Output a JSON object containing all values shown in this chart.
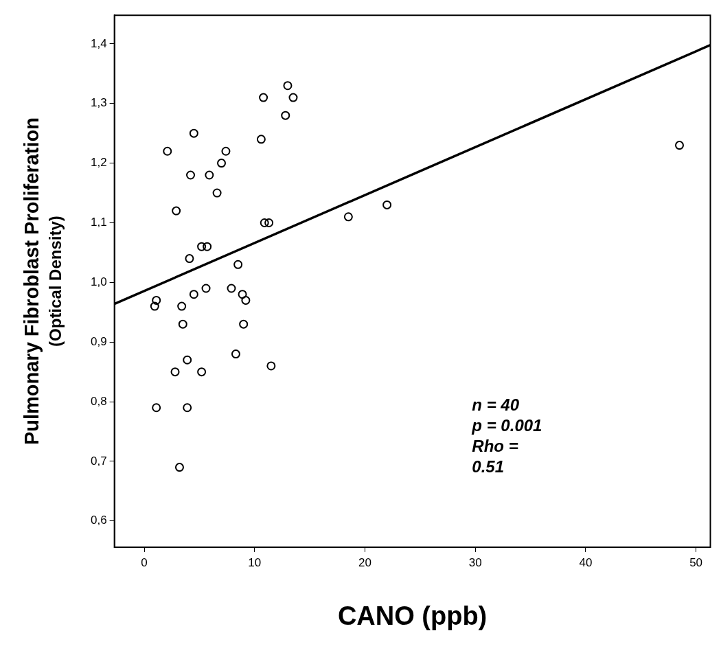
{
  "chart_data": {
    "type": "scatter",
    "xlabel": "CANO (ppb)",
    "ylabel": "Pulmonary Fibroblast Proliferation\n(Optical Density)",
    "xlim": [
      -2.7,
      51.3
    ],
    "ylim": [
      0.556,
      1.448
    ],
    "xticks": [
      0,
      10,
      20,
      30,
      40,
      50
    ],
    "yticks": [
      {
        "value": 0.6,
        "label": "0,6"
      },
      {
        "value": 0.7,
        "label": "0,7"
      },
      {
        "value": 0.8,
        "label": "0,8"
      },
      {
        "value": 0.9,
        "label": "0,9"
      },
      {
        "value": 1.0,
        "label": "1,0"
      },
      {
        "value": 1.1,
        "label": "1,1"
      },
      {
        "value": 1.2,
        "label": "1,2"
      },
      {
        "value": 1.3,
        "label": "1,3"
      },
      {
        "value": 1.4,
        "label": "1,4"
      }
    ],
    "grid": false,
    "legend": false,
    "series": [
      {
        "type": "scatter",
        "color": "#000000",
        "marker": "circle",
        "x": [
          0.95,
          1.1,
          1.1,
          2.1,
          2.9,
          2.8,
          3.4,
          3.5,
          3.2,
          3.9,
          3.9,
          4.1,
          4.2,
          4.5,
          4.5,
          5.2,
          5.2,
          5.7,
          5.6,
          5.9,
          6.6,
          7.0,
          7.4,
          7.9,
          8.3,
          8.5,
          8.9,
          9.0,
          9.2,
          10.6,
          10.8,
          10.9,
          11.3,
          11.5,
          12.8,
          13.0,
          13.5,
          18.5,
          22.0,
          48.5
        ],
        "values": [
          0.96,
          0.97,
          0.79,
          1.22,
          1.12,
          0.85,
          0.96,
          0.93,
          0.69,
          0.87,
          0.79,
          1.04,
          1.18,
          1.25,
          0.98,
          0.85,
          1.06,
          1.06,
          0.99,
          1.18,
          1.15,
          1.2,
          1.22,
          0.99,
          0.88,
          1.03,
          0.98,
          0.93,
          0.97,
          1.24,
          1.31,
          1.1,
          1.1,
          0.86,
          1.28,
          1.33,
          1.31,
          1.11,
          1.13,
          1.23
        ]
      },
      {
        "type": "line",
        "color": "#000000",
        "marker": "none",
        "line_style": "solid",
        "x": [
          -2.7,
          51.3
        ],
        "values": [
          0.964,
          1.398
        ]
      }
    ],
    "annotations": [
      "n = 40",
      "p = 0.001",
      "Rho =",
      "0.51"
    ]
  }
}
